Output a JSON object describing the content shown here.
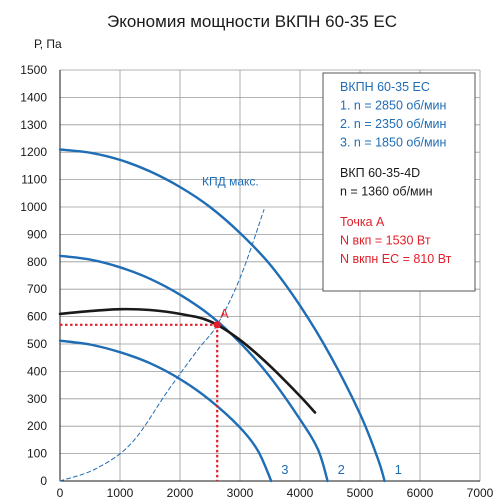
{
  "chart_data": {
    "type": "line",
    "title": "Экономия мощности ВКПН 60-35 ЕС",
    "ylabel": "Р, Па",
    "xlabel": "",
    "xlim": [
      0,
      7000
    ],
    "ylim": [
      0,
      1500
    ],
    "x_ticks": [
      "0",
      "1000",
      "2000",
      "3000",
      "4000",
      "5000",
      "6000",
      "7000"
    ],
    "y_ticks": [
      "0",
      "100",
      "200",
      "300",
      "400",
      "500",
      "600",
      "700",
      "800",
      "900",
      "1000",
      "1100",
      "1200",
      "1300",
      "1400",
      "1500"
    ],
    "grid": true,
    "colors": {
      "blue": "#1f6db5",
      "black": "#1a1a1a",
      "red": "#e2202b"
    },
    "series": [
      {
        "label": "1",
        "color": "#1f6db5",
        "style": "solid",
        "points": [
          [
            0,
            1210
          ],
          [
            500,
            1198
          ],
          [
            1000,
            1172
          ],
          [
            1500,
            1130
          ],
          [
            2000,
            1073
          ],
          [
            2500,
            1000
          ],
          [
            3000,
            905
          ],
          [
            3500,
            790
          ],
          [
            4000,
            640
          ],
          [
            4500,
            460
          ],
          [
            5000,
            245
          ],
          [
            5300,
            80
          ],
          [
            5410,
            0
          ]
        ]
      },
      {
        "label": "2",
        "color": "#1f6db5",
        "style": "solid",
        "points": [
          [
            0,
            822
          ],
          [
            500,
            808
          ],
          [
            1000,
            780
          ],
          [
            1500,
            738
          ],
          [
            2000,
            680
          ],
          [
            2500,
            605
          ],
          [
            3000,
            505
          ],
          [
            3500,
            380
          ],
          [
            4000,
            225
          ],
          [
            4300,
            115
          ],
          [
            4460,
            0
          ]
        ]
      },
      {
        "label": "3",
        "color": "#1f6db5",
        "style": "solid",
        "points": [
          [
            0,
            512
          ],
          [
            500,
            498
          ],
          [
            1000,
            470
          ],
          [
            1500,
            430
          ],
          [
            2000,
            372
          ],
          [
            2500,
            295
          ],
          [
            3000,
            195
          ],
          [
            3300,
            110
          ],
          [
            3520,
            0
          ]
        ]
      },
      {
        "label": "",
        "color": "#1a1a1a",
        "style": "solid",
        "points": [
          [
            0,
            610
          ],
          [
            500,
            620
          ],
          [
            1000,
            627
          ],
          [
            1500,
            624
          ],
          [
            2000,
            610
          ],
          [
            2500,
            583
          ],
          [
            3000,
            515
          ],
          [
            3500,
            420
          ],
          [
            4000,
            310
          ],
          [
            4250,
            250
          ]
        ]
      },
      {
        "label": "КПД макс.",
        "color": "#1f6db5",
        "style": "dashed",
        "points": [
          [
            0,
            0
          ],
          [
            600,
            45
          ],
          [
            1200,
            140
          ],
          [
            1800,
            330
          ],
          [
            2300,
            480
          ],
          [
            2620,
            570
          ],
          [
            3000,
            740
          ],
          [
            3400,
            990
          ]
        ]
      }
    ],
    "curve_labels": [
      "1",
      "2",
      "3"
    ],
    "operating_point": {
      "label": "A",
      "x": 2620,
      "y": 570
    },
    "legend": {
      "position": "top-right",
      "lines": [
        {
          "text": "ВКПН 60-35 ЕС",
          "color": "blue"
        },
        {
          "text": "1. n = 2850 об/мин",
          "color": "blue"
        },
        {
          "text": "2. n = 2350 об/мин",
          "color": "blue"
        },
        {
          "text": "3. n = 1850 об/мин",
          "color": "blue"
        },
        {
          "text": "",
          "color": "black"
        },
        {
          "text": "ВКП 60-35-4D",
          "color": "black"
        },
        {
          "text": "n = 1360 об/мин",
          "color": "black"
        },
        {
          "text": "",
          "color": "red"
        },
        {
          "text": "Точка А",
          "color": "red"
        },
        {
          "text": "N вкп = 1530 Вт",
          "color": "red"
        },
        {
          "text": "N вкпн ЕС  = 810 Вт",
          "color": "red"
        }
      ]
    }
  }
}
